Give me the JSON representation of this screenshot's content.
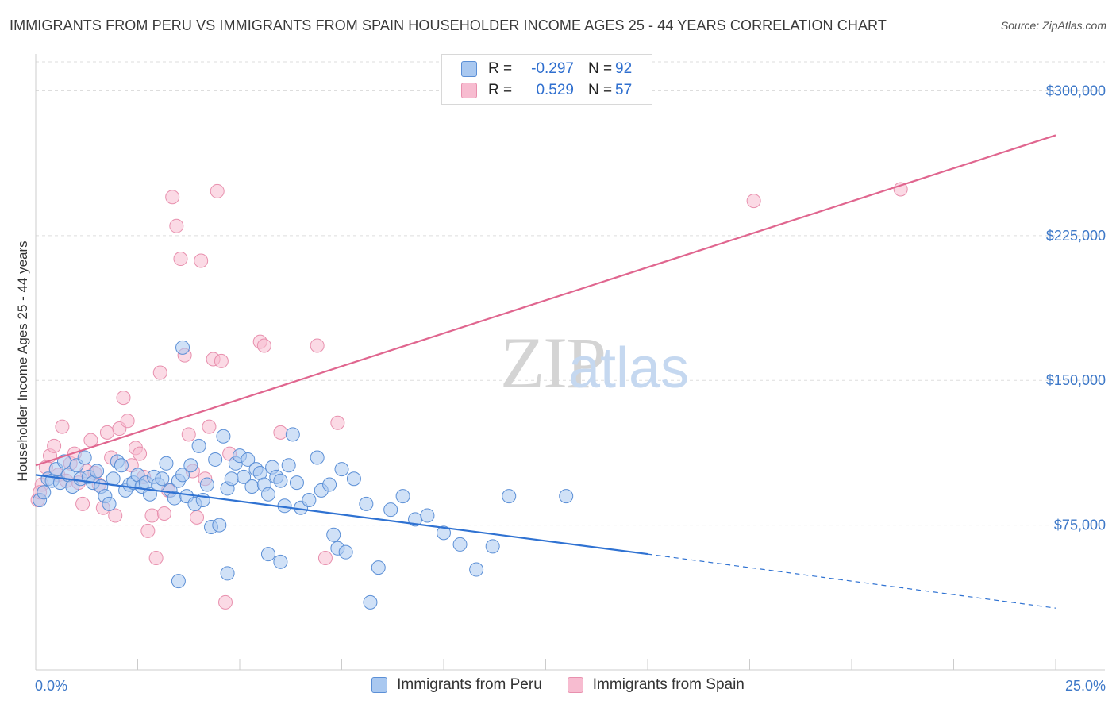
{
  "header": {
    "title": "IMMIGRANTS FROM PERU VS IMMIGRANTS FROM SPAIN HOUSEHOLDER INCOME AGES 25 - 44 YEARS CORRELATION CHART",
    "source": "Source: ZipAtlas.com"
  },
  "watermark": {
    "zip": "ZIP",
    "atlas": "atlas"
  },
  "legend": {
    "rows": [
      {
        "r_label": "R =",
        "r_value": "-0.297",
        "n_label": "N =",
        "n_value": "92"
      },
      {
        "r_label": "R =",
        "r_value": "0.529",
        "n_label": "N =",
        "n_value": "57"
      }
    ]
  },
  "colors": {
    "peru_fill": "#a9c8f0",
    "peru_stroke": "#5b8fd6",
    "peru_line": "#2f72d2",
    "spain_fill": "#f7bcd0",
    "spain_stroke": "#e890ae",
    "spain_line": "#e0668f",
    "tick_text": "#3d78c8",
    "grid": "#dddddd"
  },
  "chart_data": {
    "type": "scatter",
    "title": "IMMIGRANTS FROM PERU VS IMMIGRANTS FROM SPAIN HOUSEHOLDER INCOME AGES 25 - 44 YEARS CORRELATION CHART",
    "xlabel": "",
    "ylabel": "Householder Income Ages 25 - 44 years",
    "xlim": [
      0,
      25
    ],
    "ylim": [
      0,
      315000
    ],
    "x_tick_labels": [
      "0.0%",
      "25.0%"
    ],
    "y_ticks": [
      75000,
      150000,
      225000,
      300000
    ],
    "y_tick_labels": [
      "$75,000",
      "$150,000",
      "$225,000",
      "$300,000"
    ],
    "grid": true,
    "legend_position": "top-center",
    "series": [
      {
        "name": "Immigrants from Peru",
        "trend": {
          "x0": 0,
          "y0": 101000,
          "x1": 15,
          "y1": 60000,
          "dashed_to_x": 25,
          "dashed_to_y": 32000
        },
        "points": [
          [
            0.1,
            88000
          ],
          [
            0.2,
            92000
          ],
          [
            0.3,
            99000
          ],
          [
            0.4,
            98000
          ],
          [
            0.5,
            104000
          ],
          [
            0.6,
            97000
          ],
          [
            0.7,
            108000
          ],
          [
            0.8,
            101000
          ],
          [
            0.9,
            95000
          ],
          [
            1.0,
            106000
          ],
          [
            1.1,
            99000
          ],
          [
            1.2,
            110000
          ],
          [
            1.3,
            100000
          ],
          [
            1.4,
            97000
          ],
          [
            1.5,
            103000
          ],
          [
            1.6,
            95000
          ],
          [
            1.7,
            90000
          ],
          [
            1.8,
            86000
          ],
          [
            1.9,
            99000
          ],
          [
            2.0,
            108000
          ],
          [
            2.1,
            106000
          ],
          [
            2.2,
            93000
          ],
          [
            2.3,
            96000
          ],
          [
            2.4,
            97000
          ],
          [
            2.5,
            101000
          ],
          [
            2.6,
            95000
          ],
          [
            2.7,
            97000
          ],
          [
            2.8,
            91000
          ],
          [
            2.9,
            100000
          ],
          [
            3.0,
            96000
          ],
          [
            3.1,
            99000
          ],
          [
            3.2,
            107000
          ],
          [
            3.3,
            93000
          ],
          [
            3.4,
            89000
          ],
          [
            3.5,
            98000
          ],
          [
            3.6,
            101000
          ],
          [
            3.7,
            90000
          ],
          [
            3.8,
            106000
          ],
          [
            3.9,
            86000
          ],
          [
            4.0,
            116000
          ],
          [
            4.1,
            88000
          ],
          [
            4.2,
            96000
          ],
          [
            4.3,
            74000
          ],
          [
            4.4,
            109000
          ],
          [
            4.5,
            75000
          ],
          [
            4.6,
            121000
          ],
          [
            4.7,
            94000
          ],
          [
            4.8,
            99000
          ],
          [
            4.9,
            107000
          ],
          [
            5.0,
            111000
          ],
          [
            5.1,
            100000
          ],
          [
            5.2,
            109000
          ],
          [
            5.3,
            95000
          ],
          [
            5.4,
            104000
          ],
          [
            5.5,
            102000
          ],
          [
            5.6,
            96000
          ],
          [
            5.7,
            91000
          ],
          [
            5.8,
            105000
          ],
          [
            5.9,
            100000
          ],
          [
            6.0,
            98000
          ],
          [
            6.1,
            85000
          ],
          [
            6.2,
            106000
          ],
          [
            6.3,
            122000
          ],
          [
            6.4,
            97000
          ],
          [
            6.5,
            84000
          ],
          [
            6.7,
            88000
          ],
          [
            6.9,
            110000
          ],
          [
            7.0,
            93000
          ],
          [
            7.2,
            96000
          ],
          [
            7.4,
            63000
          ],
          [
            7.6,
            61000
          ],
          [
            7.8,
            99000
          ],
          [
            8.1,
            86000
          ],
          [
            8.4,
            53000
          ],
          [
            8.7,
            83000
          ],
          [
            9.0,
            90000
          ],
          [
            9.3,
            78000
          ],
          [
            9.6,
            80000
          ],
          [
            10.0,
            71000
          ],
          [
            10.4,
            65000
          ],
          [
            10.8,
            52000
          ],
          [
            11.2,
            64000
          ],
          [
            11.6,
            90000
          ],
          [
            3.6,
            167000
          ],
          [
            7.5,
            104000
          ],
          [
            5.7,
            60000
          ],
          [
            4.7,
            50000
          ],
          [
            3.5,
            46000
          ],
          [
            7.3,
            70000
          ],
          [
            13.0,
            90000
          ],
          [
            8.2,
            35000
          ],
          [
            6.0,
            56000
          ]
        ]
      },
      {
        "name": "Immigrants from Spain",
        "trend": {
          "x0": 0,
          "y0": 106000,
          "x1": 25,
          "y1": 277000
        },
        "points": [
          [
            0.05,
            88000
          ],
          [
            0.15,
            96000
          ],
          [
            0.25,
            105000
          ],
          [
            0.35,
            111000
          ],
          [
            0.45,
            116000
          ],
          [
            0.55,
            101000
          ],
          [
            0.65,
            126000
          ],
          [
            0.75,
            98000
          ],
          [
            0.85,
            107000
          ],
          [
            0.95,
            112000
          ],
          [
            1.05,
            97000
          ],
          [
            1.15,
            86000
          ],
          [
            1.25,
            103000
          ],
          [
            1.35,
            119000
          ],
          [
            1.45,
            102000
          ],
          [
            1.55,
            96000
          ],
          [
            1.65,
            84000
          ],
          [
            1.75,
            123000
          ],
          [
            1.85,
            110000
          ],
          [
            1.95,
            80000
          ],
          [
            2.05,
            125000
          ],
          [
            2.15,
            141000
          ],
          [
            2.25,
            129000
          ],
          [
            2.35,
            106000
          ],
          [
            2.45,
            115000
          ],
          [
            2.55,
            112000
          ],
          [
            2.65,
            100000
          ],
          [
            2.75,
            72000
          ],
          [
            2.85,
            80000
          ],
          [
            2.95,
            58000
          ],
          [
            3.05,
            154000
          ],
          [
            3.15,
            81000
          ],
          [
            3.25,
            93000
          ],
          [
            3.35,
            245000
          ],
          [
            3.45,
            230000
          ],
          [
            3.55,
            213000
          ],
          [
            3.65,
            163000
          ],
          [
            3.75,
            122000
          ],
          [
            3.85,
            103000
          ],
          [
            3.95,
            79000
          ],
          [
            4.05,
            212000
          ],
          [
            4.15,
            99000
          ],
          [
            4.25,
            126000
          ],
          [
            4.35,
            161000
          ],
          [
            4.45,
            248000
          ],
          [
            4.55,
            160000
          ],
          [
            4.65,
            35000
          ],
          [
            4.75,
            112000
          ],
          [
            5.5,
            170000
          ],
          [
            5.6,
            168000
          ],
          [
            6.0,
            123000
          ],
          [
            6.9,
            168000
          ],
          [
            7.1,
            58000
          ],
          [
            7.4,
            128000
          ],
          [
            17.6,
            243000
          ],
          [
            21.2,
            249000
          ],
          [
            0.1,
            92000
          ]
        ]
      }
    ]
  },
  "bottom_legend": {
    "peru_label": "Immigrants from Peru",
    "spain_label": "Immigrants from Spain"
  }
}
